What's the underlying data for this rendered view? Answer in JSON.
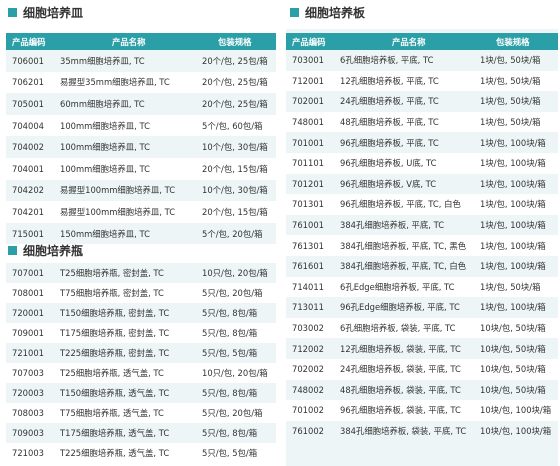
{
  "dish": {
    "title": "细胞培养皿",
    "headers": [
      "产品编码",
      "产品名称",
      "包装规格"
    ],
    "rows": [
      [
        "706001",
        "35mm细胞培养皿, TC",
        "20个/包, 25包/箱"
      ],
      [
        "706201",
        "易握型35mm细胞培养皿, TC",
        "20个/包, 25包/箱"
      ],
      [
        "705001",
        "60mm细胞培养皿, TC",
        "20个/包, 25包/箱"
      ],
      [
        "704004",
        "100mm细胞培养皿, TC",
        "5个/包, 60包/箱"
      ],
      [
        "704002",
        "100mm细胞培养皿, TC",
        "10个/包, 30包/箱"
      ],
      [
        "704001",
        "100mm细胞培养皿, TC",
        "20个/包, 15包/箱"
      ],
      [
        "704202",
        "易握型100mm细胞培养皿, TC",
        "10个/包, 30包/箱"
      ],
      [
        "704201",
        "易握型100mm细胞培养皿, TC",
        "20个/包, 15包/箱"
      ],
      [
        "715001",
        "150mm细胞培养皿, TC",
        "5个/包, 20包/箱"
      ]
    ]
  },
  "flask": {
    "title": "细胞培养瓶",
    "rows": [
      [
        "707001",
        "T25细胞培养瓶, 密封盖, TC",
        "10只/包, 20包/箱"
      ],
      [
        "708001",
        "T75细胞培养瓶, 密封盖, TC",
        "5只/包, 20包/箱"
      ],
      [
        "720001",
        "T150细胞培养瓶, 密封盖, TC",
        "5只/包, 8包/箱"
      ],
      [
        "709001",
        "T175细胞培养瓶, 密封盖, TC",
        "5只/包, 8包/箱"
      ],
      [
        "721001",
        "T225细胞培养瓶, 密封盖, TC",
        "5只/包, 5包/箱"
      ],
      [
        "707003",
        "T25细胞培养瓶, 透气盖, TC",
        "10只/包, 20包/箱"
      ],
      [
        "720003",
        "T150细胞培养瓶, 透气盖, TC",
        "5只/包, 8包/箱"
      ],
      [
        "708003",
        "T75细胞培养瓶, 透气盖, TC",
        "5只/包, 20包/箱"
      ],
      [
        "709003",
        "T175细胞培养瓶, 透气盖, TC",
        "5只/包, 8包/箱"
      ],
      [
        "721003",
        "T225细胞培养瓶, 透气盖, TC",
        "5只/包, 5包/箱"
      ]
    ]
  },
  "plate": {
    "title": "细胞培养板",
    "headers": [
      "产品编码",
      "产品名称",
      "包装规格"
    ],
    "rows": [
      [
        "703001",
        "6孔细胞培养板, 平底, TC",
        "1块/包, 50块/箱"
      ],
      [
        "712001",
        "12孔细胞培养板, 平底, TC",
        "1块/包, 50块/箱"
      ],
      [
        "702001",
        "24孔细胞培养板, 平底, TC",
        "1块/包, 50块/箱"
      ],
      [
        "748001",
        "48孔细胞培养板, 平底, TC",
        "1块/包, 50块/箱"
      ],
      [
        "701001",
        "96孔细胞培养板, 平底, TC",
        "1块/包, 100块/箱"
      ],
      [
        "701101",
        "96孔细胞培养板, U底, TC",
        "1块/包, 100块/箱"
      ],
      [
        "701201",
        "96孔细胞培养板, V底, TC",
        "1块/包, 100块/箱"
      ],
      [
        "701301",
        "96孔细胞培养板, 平底, TC, 白色",
        "1块/包, 100块/箱"
      ],
      [
        "761001",
        "384孔细胞培养板, 平底, TC",
        "1块/包, 100块/箱"
      ],
      [
        "761301",
        "384孔细胞培养板, 平底, TC, 黑色",
        "1块/包, 100块/箱"
      ],
      [
        "761601",
        "384孔细胞培养板, 平底, TC, 白色",
        "1块/包, 100块/箱"
      ],
      [
        "714011",
        "6孔Edge细胞培养板, 平底, TC",
        "1块/包, 50块/箱"
      ],
      [
        "713011",
        "96孔Edge细胞培养板, 平底, TC",
        "1块/包, 100块/箱"
      ],
      [
        "703002",
        "6孔细胞培养板, 袋装, 平底, TC",
        "10块/包, 50块/箱"
      ],
      [
        "712002",
        "12孔细胞培养板, 袋装, 平底, TC",
        "10块/包, 50块/箱"
      ],
      [
        "702002",
        "24孔细胞培养板, 袋装, 平底, TC",
        "10块/包, 50块/箱"
      ],
      [
        "748002",
        "48孔细胞培养板, 袋装, 平底, TC",
        "10块/包, 50块/箱"
      ],
      [
        "701002",
        "96孔细胞培养板, 袋装, 平底, TC",
        "10块/包, 100块/箱"
      ],
      [
        "761002",
        "384孔细胞培养板, 袋装, 平底, TC",
        "10块/包, 100块/箱"
      ]
    ]
  }
}
